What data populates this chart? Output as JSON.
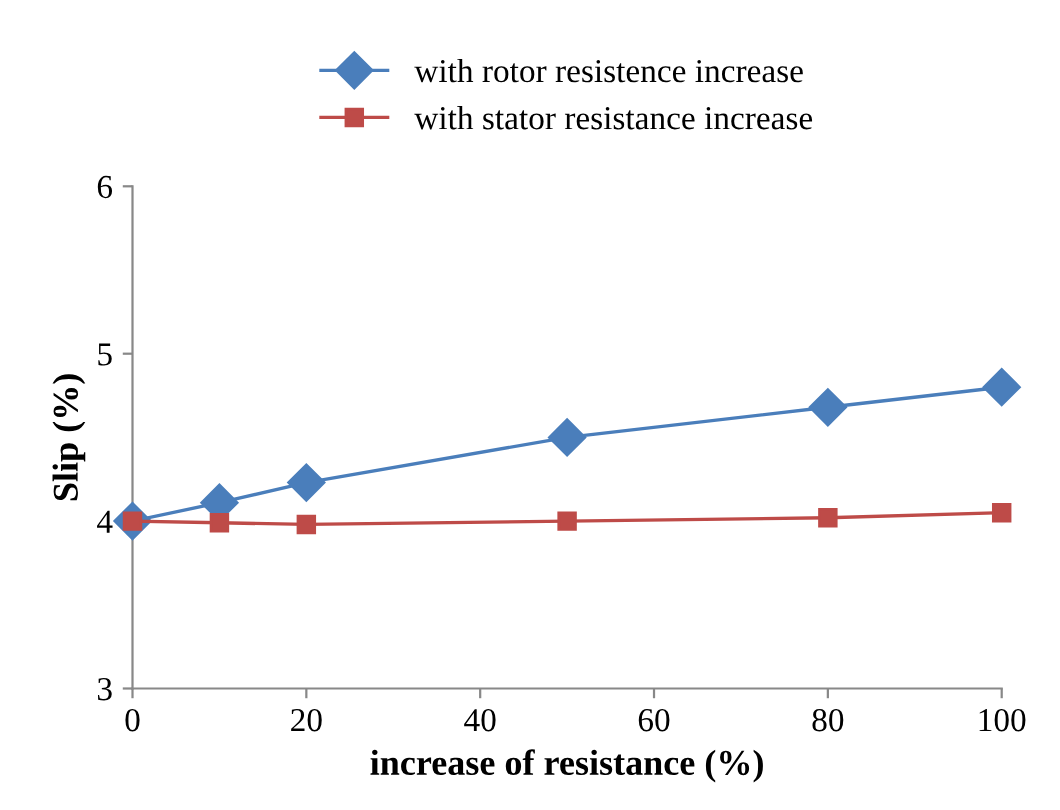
{
  "chart_data": {
    "type": "line",
    "xlabel": "increase of resistance (%)",
    "ylabel": "Slip (%)",
    "x": [
      0,
      10,
      20,
      50,
      80,
      100
    ],
    "series": [
      {
        "name": "with rotor resistence increase",
        "color": "#4a7ebb",
        "marker": "diamond",
        "values": [
          4.0,
          4.11,
          4.23,
          4.5,
          4.68,
          4.8
        ]
      },
      {
        "name": "with stator resistance increase",
        "color": "#be4b48",
        "marker": "square",
        "values": [
          4.0,
          3.99,
          3.98,
          4.0,
          4.02,
          4.05
        ]
      }
    ],
    "xlim": [
      0,
      100
    ],
    "xticks": [
      0,
      20,
      40,
      60,
      80,
      100
    ],
    "ylim": [
      3,
      6
    ],
    "yticks": [
      3,
      4,
      5,
      6
    ],
    "grid": false,
    "legend": "top",
    "line_style": "solid"
  }
}
